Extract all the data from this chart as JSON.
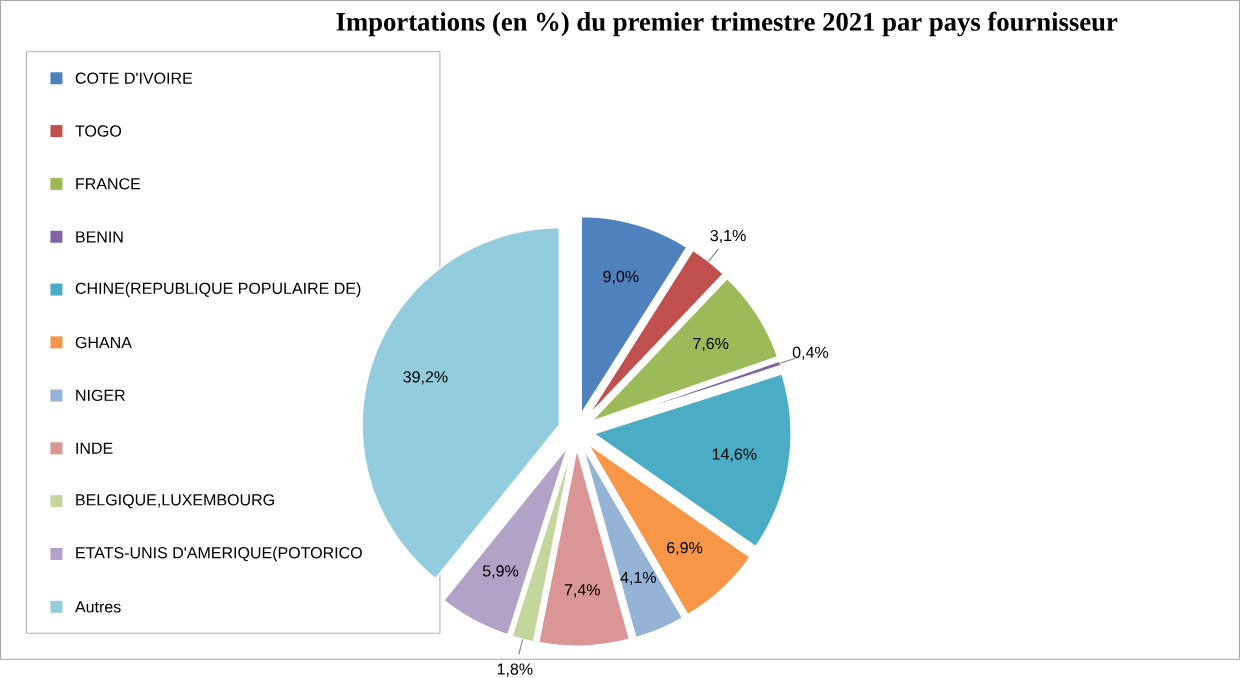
{
  "chart_data": {
    "type": "pie",
    "title": "Importations (en %) du premier trimestre 2021 par pays fournisseur",
    "categories": [
      "COTE D'IVOIRE",
      "TOGO",
      "FRANCE",
      "BENIN",
      "CHINE(REPUBLIQUE POPULAIRE DE)",
      "GHANA",
      "NIGER",
      "INDE",
      "BELGIQUE,LUXEMBOURG",
      "ETATS-UNIS D'AMERIQUE(POTORICO",
      "Autres"
    ],
    "values": [
      9.0,
      3.1,
      7.6,
      0.4,
      14.6,
      6.9,
      4.1,
      7.4,
      1.8,
      5.9,
      39.2
    ],
    "value_labels": [
      "9,0%",
      "3,1%",
      "7,6%",
      "0,4%",
      "14,6%",
      "6,9%",
      "4,1%",
      "7,4%",
      "1,8%",
      "5,9%",
      "39,2%"
    ],
    "colors": [
      "#4f81bd",
      "#c0504d",
      "#9bbb59",
      "#8064a2",
      "#4bacc6",
      "#f79646",
      "#95b3d7",
      "#d99694",
      "#c3d69b",
      "#b3a2c7",
      "#93cddd"
    ],
    "legend": "left"
  }
}
